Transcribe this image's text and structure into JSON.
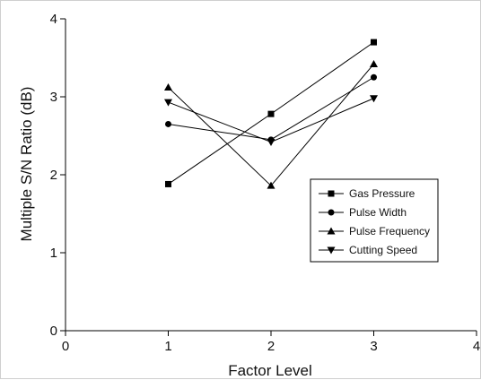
{
  "chart_data": {
    "type": "line",
    "title": "",
    "xlabel": "Factor Level",
    "ylabel": "Multiple S/N Ratio (dB)",
    "xlim": [
      0,
      4
    ],
    "ylim": [
      0,
      4
    ],
    "x_ticks": [
      "0",
      "1",
      "2",
      "3",
      "4"
    ],
    "y_ticks": [
      "0",
      "1",
      "2",
      "3",
      "4"
    ],
    "grid": false,
    "legend_position": "lower-right",
    "x": [
      1,
      2,
      3
    ],
    "series": [
      {
        "name": "Gas Pressure",
        "marker": "square",
        "values": [
          1.88,
          2.78,
          3.7
        ]
      },
      {
        "name": "Pulse Width",
        "marker": "circle",
        "values": [
          2.65,
          2.45,
          3.25
        ]
      },
      {
        "name": "Pulse Frequency",
        "marker": "triangle-up",
        "values": [
          3.12,
          1.86,
          3.42
        ]
      },
      {
        "name": "Cutting Speed",
        "marker": "triangle-down",
        "values": [
          2.93,
          2.42,
          2.98
        ]
      }
    ]
  }
}
